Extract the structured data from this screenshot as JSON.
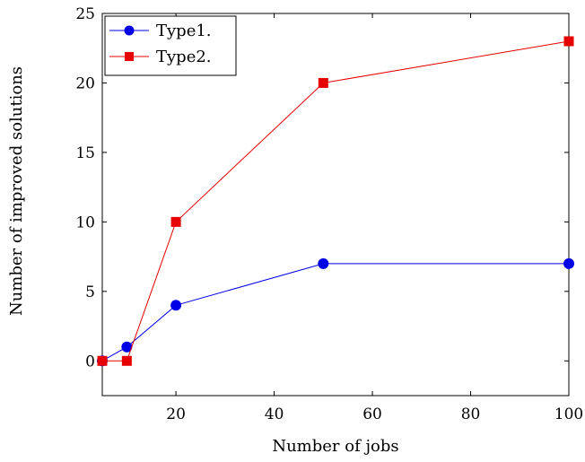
{
  "chart_data": {
    "type": "line",
    "title": "",
    "xlabel": "Number of jobs",
    "ylabel": "Number of improved solutions",
    "xlim": [
      5,
      100
    ],
    "ylim": [
      -2.5,
      25
    ],
    "xticks": [
      20,
      40,
      60,
      80,
      100
    ],
    "yticks": [
      0,
      5,
      10,
      15,
      20,
      25
    ],
    "grid": false,
    "legend_position": "top-left",
    "series": [
      {
        "name": "Type1.",
        "color": "#0000e6",
        "marker": "circle",
        "x": [
          5,
          10,
          20,
          50,
          100
        ],
        "y": [
          0,
          1,
          4,
          7,
          7
        ]
      },
      {
        "name": "Type2.",
        "color": "#e60000",
        "marker": "square",
        "x": [
          5,
          10,
          20,
          50,
          100
        ],
        "y": [
          0,
          0,
          10,
          20,
          23
        ]
      }
    ]
  }
}
